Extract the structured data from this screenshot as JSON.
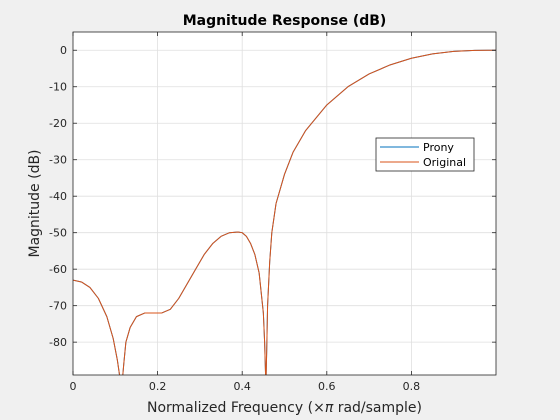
{
  "chart_data": {
    "type": "line",
    "title": "Magnitude Response (dB)",
    "xlabel_prefix": "Normalized Frequency  (",
    "xlabel_times": "×",
    "xlabel_pi": "π",
    "xlabel_suffix": " rad/sample)",
    "ylabel": "Magnitude (dB)",
    "xlim": [
      0,
      1
    ],
    "ylim": [
      -89,
      5
    ],
    "xticks": [
      0,
      0.2,
      0.4,
      0.6,
      0.8
    ],
    "xtick_labels": [
      "0",
      "0.2",
      "0.4",
      "0.6",
      "0.8"
    ],
    "yticks": [
      0,
      -10,
      -20,
      -30,
      -40,
      -50,
      -60,
      -70,
      -80
    ],
    "ytick_labels": [
      "0",
      "-10",
      "-20",
      "-30",
      "-40",
      "-50",
      "-60",
      "-70",
      "-80"
    ],
    "grid": true,
    "legend_position": "right-middle",
    "series": [
      {
        "name": "Prony",
        "color": "#0072bd",
        "x": [
          0,
          0.02,
          0.04,
          0.06,
          0.08,
          0.095,
          0.105,
          0.11,
          0.113,
          0.117,
          0.12,
          0.125,
          0.135,
          0.15,
          0.17,
          0.19,
          0.21,
          0.23,
          0.25,
          0.27,
          0.29,
          0.31,
          0.33,
          0.35,
          0.37,
          0.39,
          0.4,
          0.41,
          0.42,
          0.43,
          0.44,
          0.45,
          0.453,
          0.456,
          0.458,
          0.46,
          0.465,
          0.47,
          0.48,
          0.5,
          0.52,
          0.55,
          0.6,
          0.65,
          0.7,
          0.75,
          0.8,
          0.85,
          0.9,
          0.95,
          0.98,
          1.0
        ],
        "y": [
          -63,
          -63.5,
          -65,
          -68,
          -73,
          -79,
          -85,
          -89,
          -93,
          -90,
          -86,
          -80,
          -76,
          -73,
          -72,
          -72,
          -72,
          -71,
          -68,
          -64,
          -60,
          -56,
          -53,
          -51,
          -50,
          -49.8,
          -50,
          -51,
          -53,
          -56,
          -61,
          -72,
          -80,
          -92,
          -82,
          -70,
          -58,
          -50,
          -42,
          -34,
          -28,
          -22,
          -15,
          -10,
          -6.5,
          -4,
          -2.2,
          -1,
          -0.3,
          -0.05,
          0,
          0
        ]
      },
      {
        "name": "Original",
        "color": "#d95319",
        "x": [
          0,
          0.02,
          0.04,
          0.06,
          0.08,
          0.095,
          0.105,
          0.11,
          0.113,
          0.117,
          0.12,
          0.125,
          0.135,
          0.15,
          0.17,
          0.19,
          0.21,
          0.23,
          0.25,
          0.27,
          0.29,
          0.31,
          0.33,
          0.35,
          0.37,
          0.39,
          0.4,
          0.41,
          0.42,
          0.43,
          0.44,
          0.45,
          0.453,
          0.456,
          0.458,
          0.46,
          0.465,
          0.47,
          0.48,
          0.5,
          0.52,
          0.55,
          0.6,
          0.65,
          0.7,
          0.75,
          0.8,
          0.85,
          0.9,
          0.95,
          0.98,
          1.0
        ],
        "y": [
          -63,
          -63.5,
          -65,
          -68,
          -73,
          -79,
          -85,
          -89,
          -93,
          -90,
          -86,
          -80,
          -76,
          -73,
          -72,
          -72,
          -72,
          -71,
          -68,
          -64,
          -60,
          -56,
          -53,
          -51,
          -50,
          -49.8,
          -50,
          -51,
          -53,
          -56,
          -61,
          -72,
          -80,
          -92,
          -82,
          -70,
          -58,
          -50,
          -42,
          -34,
          -28,
          -22,
          -15,
          -10,
          -6.5,
          -4,
          -2.2,
          -1,
          -0.3,
          -0.05,
          0,
          0
        ]
      }
    ]
  }
}
